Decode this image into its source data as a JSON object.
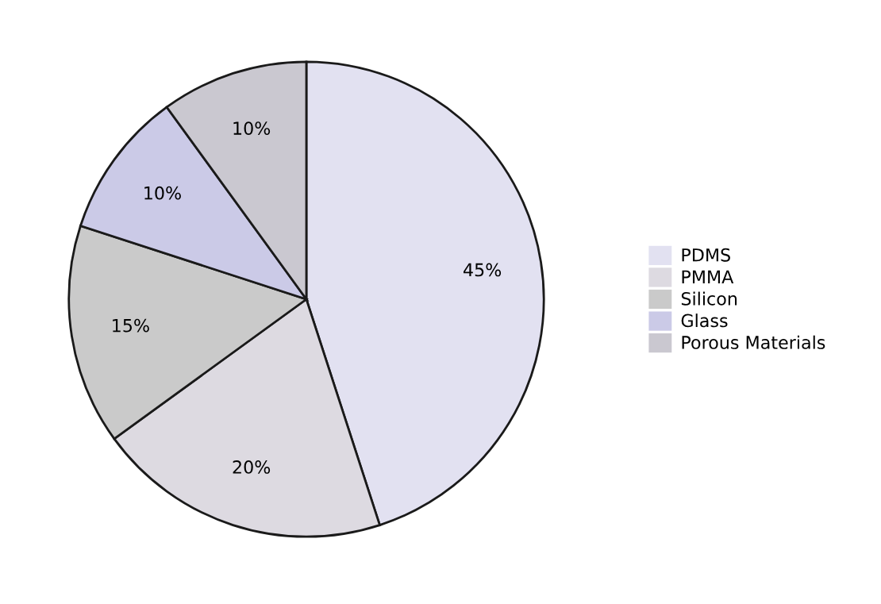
{
  "chart_data": {
    "type": "pie",
    "categories": [
      "PDMS",
      "PMMA",
      "Silicon",
      "Glass",
      "Porous Materials"
    ],
    "values": [
      45,
      20,
      15,
      10,
      10
    ],
    "value_labels": [
      "45%",
      "20%",
      "15%",
      "10%",
      "10%"
    ],
    "colors": [
      "#e2e1f1",
      "#dddae1",
      "#cacaca",
      "#cbcae7",
      "#cac8d0"
    ],
    "legend": "right"
  }
}
